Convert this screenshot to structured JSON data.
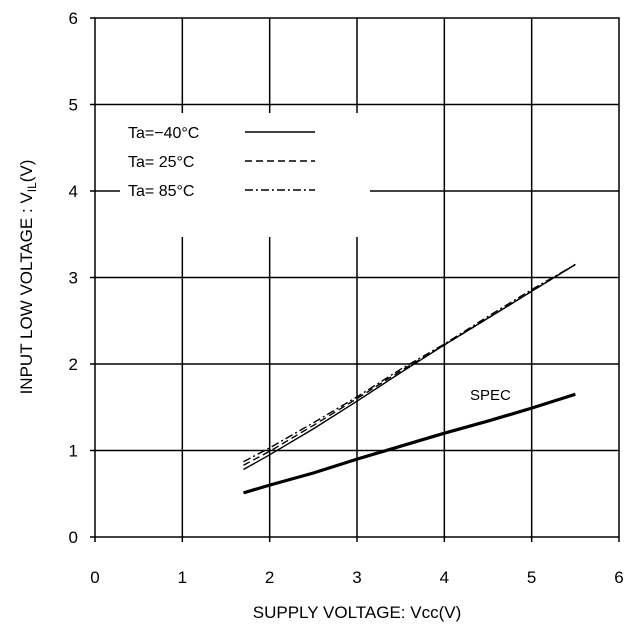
{
  "chart_data": {
    "type": "line",
    "title": "",
    "xlabel": "SUPPLY VOLTAGE: Vcc(V)",
    "ylabel_main": "INPUT LOW VOLTAGE : V",
    "ylabel_sub": "IL",
    "ylabel_tail": "(V)",
    "xlim": [
      0,
      6
    ],
    "ylim": [
      0,
      6
    ],
    "xticks": [
      "0",
      "1",
      "2",
      "3",
      "4",
      "5",
      "6"
    ],
    "yticks": [
      "0",
      "1",
      "2",
      "3",
      "4",
      "5",
      "6"
    ],
    "grid": true,
    "legend_position": "top-left",
    "series": [
      {
        "name": "Ta=−40°C",
        "style": "solid",
        "x": [
          1.7,
          2.0,
          2.5,
          3.0,
          3.5,
          4.0,
          4.5,
          5.0,
          5.5
        ],
        "y": [
          0.78,
          0.95,
          1.25,
          1.57,
          1.9,
          2.22,
          2.53,
          2.84,
          3.15
        ]
      },
      {
        "name": "Ta= 25°C",
        "style": "dashed",
        "x": [
          1.7,
          2.0,
          2.5,
          3.0,
          3.5,
          4.0,
          4.5,
          5.0,
          5.5
        ],
        "y": [
          0.83,
          0.99,
          1.29,
          1.6,
          1.92,
          2.22,
          2.53,
          2.84,
          3.15
        ]
      },
      {
        "name": "Ta= 85°C",
        "style": "dashdot",
        "x": [
          1.7,
          2.0,
          2.5,
          3.0,
          3.5,
          4.0,
          4.5,
          5.0,
          5.5
        ],
        "y": [
          0.87,
          1.03,
          1.32,
          1.62,
          1.94,
          2.23,
          2.55,
          2.86,
          3.15
        ]
      }
    ],
    "spec_line": {
      "label": "SPEC",
      "x": [
        1.7,
        2.0,
        2.5,
        3.0,
        3.5,
        4.0,
        4.5,
        5.0,
        5.5
      ],
      "y": [
        0.51,
        0.6,
        0.74,
        0.9,
        1.05,
        1.2,
        1.34,
        1.49,
        1.65
      ]
    }
  }
}
